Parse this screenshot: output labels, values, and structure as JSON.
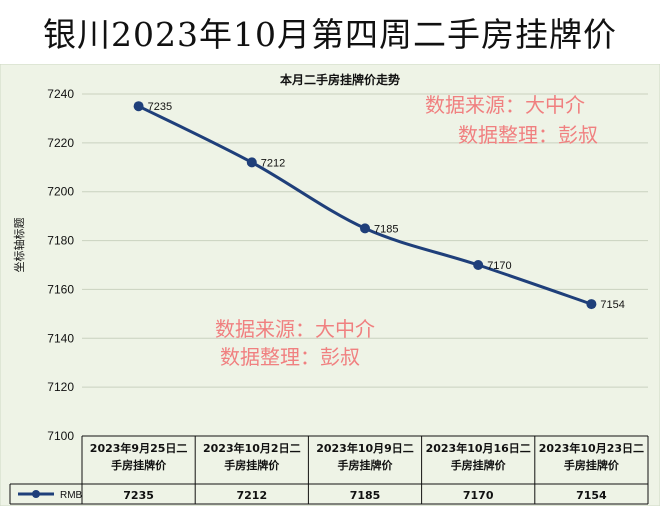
{
  "page_title": "银川2023年10月第四周二手房挂牌价",
  "chart_data": {
    "type": "line",
    "title": "本月二手房挂牌价走势",
    "ylabel": "坐标轴标题",
    "ylim": [
      7100,
      7240
    ],
    "yticks": [
      7100,
      7120,
      7140,
      7160,
      7180,
      7200,
      7220,
      7240
    ],
    "categories": [
      "2023年9月25日二手房挂牌价",
      "2023年10月2日二手房挂牌价",
      "2023年10月9日二手房挂牌价",
      "2023年10月16日二手房挂牌价",
      "2023年10月23日二手房挂牌价"
    ],
    "category_lines": [
      [
        "2023年9月25日二",
        "手房挂牌价"
      ],
      [
        "2023年10月2日二",
        "手房挂牌价"
      ],
      [
        "2023年10月9日二",
        "手房挂牌价"
      ],
      [
        "2023年10月16日二",
        "手房挂牌价"
      ],
      [
        "2023年10月23日二",
        "手房挂牌价"
      ]
    ],
    "series": [
      {
        "name": "RMB",
        "values": [
          7235,
          7212,
          7185,
          7170,
          7154
        ],
        "color": "#1f3f7a"
      }
    ],
    "grid": true,
    "legend": "data-table"
  },
  "watermarks": [
    {
      "line1": "数据来源：大中介",
      "line2": "数据整理：彭叔"
    },
    {
      "line1": "数据来源：大中介",
      "line2": "数据整理：彭叔"
    }
  ],
  "colors": {
    "plot_bg": "#eef3e6",
    "line": "#1f3f7a",
    "watermark": "#f08080"
  }
}
